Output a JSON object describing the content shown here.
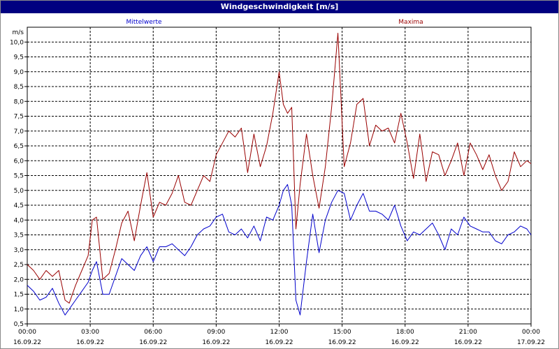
{
  "window": {
    "title": "Windgeschwindigkeit [m/s]"
  },
  "chart_data": {
    "type": "line",
    "title": "Windgeschwindigkeit [m/s]",
    "ylabel": "m/s",
    "xlabel": "",
    "ylim": [
      0.5,
      10.5
    ],
    "xlim_hours": [
      0,
      24
    ],
    "grid": true,
    "y_ticks": [
      "0,5",
      "1,0",
      "1,5",
      "2,0",
      "2,5",
      "3,0",
      "3,5",
      "4,0",
      "4,5",
      "5,0",
      "5,5",
      "6,0",
      "6,5",
      "7,0",
      "7,5",
      "8,0",
      "8,5",
      "9,0",
      "9,5",
      "10,0"
    ],
    "x_ticks": [
      {
        "time": "00:00",
        "date": "16.09.22"
      },
      {
        "time": "03:00",
        "date": "16.09.22"
      },
      {
        "time": "06:00",
        "date": "16.09.22"
      },
      {
        "time": "09:00",
        "date": "16.09.22"
      },
      {
        "time": "12:00",
        "date": "16.09.22"
      },
      {
        "time": "15:00",
        "date": "16.09.22"
      },
      {
        "time": "18:00",
        "date": "16.09.22"
      },
      {
        "time": "21:00",
        "date": "16.09.22"
      },
      {
        "time": "00:00",
        "date": "17.09.22"
      }
    ],
    "series": [
      {
        "name": "Mittelwerte",
        "color": "#0000cc",
        "x": [
          0,
          0.3,
          0.6,
          0.9,
          1.2,
          1.5,
          1.8,
          2.0,
          2.3,
          2.6,
          2.9,
          3.1,
          3.3,
          3.6,
          3.9,
          4.2,
          4.5,
          4.8,
          5.1,
          5.4,
          5.7,
          6.0,
          6.3,
          6.6,
          6.9,
          7.2,
          7.5,
          7.8,
          8.1,
          8.4,
          8.7,
          9.0,
          9.3,
          9.6,
          9.9,
          10.2,
          10.5,
          10.8,
          11.1,
          11.4,
          11.7,
          12.0,
          12.2,
          12.4,
          12.6,
          12.8,
          13.0,
          13.3,
          13.6,
          13.9,
          14.2,
          14.5,
          14.8,
          15.1,
          15.4,
          15.7,
          16.0,
          16.3,
          16.6,
          16.9,
          17.2,
          17.5,
          17.8,
          18.1,
          18.4,
          18.7,
          19.0,
          19.3,
          19.6,
          19.9,
          20.2,
          20.5,
          20.8,
          21.1,
          21.4,
          21.7,
          22.0,
          22.3,
          22.6,
          22.9,
          23.2,
          23.5,
          23.8,
          24.0
        ],
        "values": [
          1.8,
          1.6,
          1.3,
          1.4,
          1.7,
          1.2,
          0.8,
          1.0,
          1.3,
          1.6,
          1.9,
          2.3,
          2.6,
          1.5,
          1.5,
          2.1,
          2.7,
          2.5,
          2.3,
          2.8,
          3.1,
          2.6,
          3.1,
          3.1,
          3.2,
          3.0,
          2.8,
          3.1,
          3.5,
          3.7,
          3.8,
          4.1,
          4.2,
          3.6,
          3.5,
          3.7,
          3.4,
          3.8,
          3.3,
          4.1,
          4.0,
          4.5,
          5.0,
          5.2,
          4.5,
          1.3,
          0.8,
          2.6,
          4.2,
          2.9,
          4.0,
          4.6,
          5.0,
          4.9,
          4.0,
          4.5,
          4.9,
          4.3,
          4.3,
          4.2,
          4.0,
          4.5,
          3.8,
          3.3,
          3.6,
          3.5,
          3.7,
          3.9,
          3.5,
          3.0,
          3.7,
          3.5,
          4.1,
          3.8,
          3.7,
          3.6,
          3.6,
          3.3,
          3.2,
          3.5,
          3.6,
          3.8,
          3.7,
          3.5
        ]
      },
      {
        "name": "Maxima",
        "color": "#990000",
        "x": [
          0,
          0.3,
          0.6,
          0.9,
          1.2,
          1.5,
          1.8,
          2.0,
          2.3,
          2.6,
          2.9,
          3.1,
          3.3,
          3.6,
          3.9,
          4.2,
          4.5,
          4.8,
          5.1,
          5.4,
          5.7,
          6.0,
          6.3,
          6.6,
          6.9,
          7.2,
          7.5,
          7.8,
          8.1,
          8.4,
          8.7,
          9.0,
          9.3,
          9.6,
          9.9,
          10.2,
          10.5,
          10.8,
          11.1,
          11.4,
          11.7,
          12.0,
          12.2,
          12.4,
          12.6,
          12.8,
          13.0,
          13.3,
          13.6,
          13.9,
          14.2,
          14.5,
          14.8,
          15.1,
          15.4,
          15.7,
          16.0,
          16.3,
          16.6,
          16.9,
          17.2,
          17.5,
          17.8,
          18.1,
          18.4,
          18.7,
          19.0,
          19.3,
          19.6,
          19.9,
          20.2,
          20.5,
          20.8,
          21.1,
          21.4,
          21.7,
          22.0,
          22.3,
          22.6,
          22.9,
          23.2,
          23.5,
          23.8,
          24.0
        ],
        "values": [
          2.5,
          2.3,
          2.0,
          2.3,
          2.1,
          2.3,
          1.3,
          1.2,
          1.8,
          2.3,
          2.8,
          4.0,
          4.1,
          2.0,
          2.2,
          3.0,
          3.9,
          4.3,
          3.3,
          4.5,
          5.6,
          4.1,
          4.6,
          4.5,
          4.9,
          5.5,
          4.6,
          4.5,
          5.0,
          5.5,
          5.3,
          6.2,
          6.6,
          7.0,
          6.8,
          7.1,
          5.6,
          6.9,
          5.8,
          6.5,
          7.6,
          9.0,
          7.9,
          7.6,
          7.8,
          3.7,
          5.2,
          6.9,
          5.5,
          4.4,
          5.8,
          7.8,
          10.3,
          5.8,
          6.6,
          7.9,
          8.1,
          6.5,
          7.2,
          7.0,
          7.1,
          6.6,
          7.6,
          6.6,
          5.4,
          6.9,
          5.3,
          6.3,
          6.2,
          5.5,
          6.0,
          6.6,
          5.5,
          6.6,
          6.2,
          5.7,
          6.2,
          5.5,
          5.0,
          5.3,
          6.3,
          5.8,
          6.0,
          5.9
        ]
      }
    ]
  }
}
